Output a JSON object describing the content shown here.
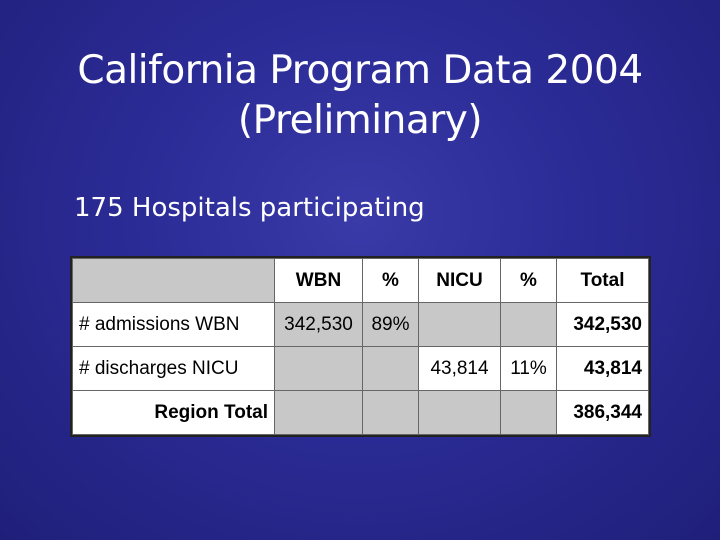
{
  "slide": {
    "title_line1": "California Program Data 2004",
    "title_line2": "(Preliminary)",
    "subtitle": "175 Hospitals participating"
  },
  "table": {
    "headers": [
      "",
      "WBN",
      "%",
      "NICU",
      "%",
      "Total"
    ],
    "rows": [
      {
        "label": "# admissions WBN",
        "wbn": "342,530",
        "wbn_pct": "89%",
        "nicu": "",
        "nicu_pct": "",
        "total": "342,530"
      },
      {
        "label": "# discharges NICU",
        "wbn": "",
        "wbn_pct": "",
        "nicu": "43,814",
        "nicu_pct": "11%",
        "total": "43,814"
      },
      {
        "label": "Region Total",
        "wbn": "",
        "wbn_pct": "",
        "nicu": "",
        "nicu_pct": "",
        "total": "386,344"
      }
    ]
  },
  "colors": {
    "background": "#2b2b96",
    "shaded_cell": "#c8c8c8"
  }
}
